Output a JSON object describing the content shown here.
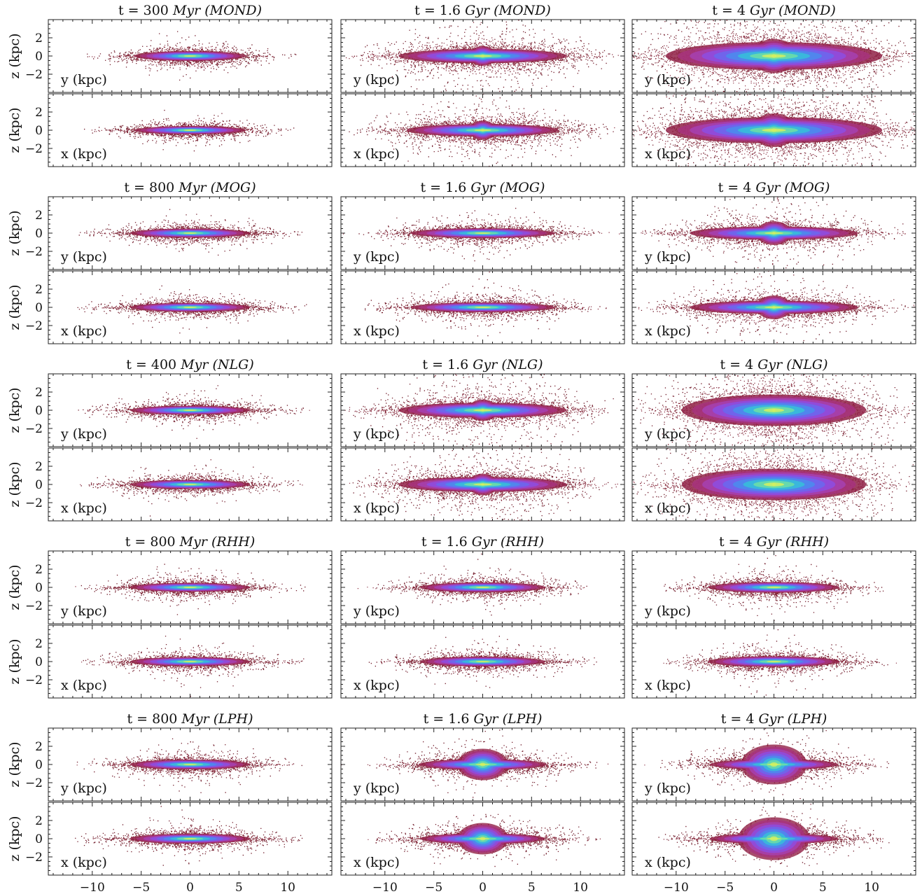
{
  "figure": {
    "x_tick_labels": [
      "−10",
      "−5",
      "0",
      "5",
      "10"
    ],
    "z_tick_labels": [
      "2",
      "0",
      "−2"
    ],
    "z_axis_label": "z  (kpc)",
    "colormap": [
      "#5a0f1e",
      "#8e1f3f",
      "#b23a9a",
      "#8a4fe8",
      "#4f7ff2",
      "#2fd4d0",
      "#d4f060"
    ]
  },
  "chart_data": [
    {
      "type": "scatter",
      "row": 0,
      "col": 0,
      "panel": "y",
      "title": "t = 300 Myr (MOND)",
      "title_time": "t = 300",
      "title_unit": "Myr",
      "title_model": "(MOND)",
      "inset_label": "y  (kpc)",
      "xlim": [
        -14.5,
        14.5
      ],
      "ylim": [
        -4,
        4
      ],
      "disk_half_length": 7.0,
      "disk_half_thickness": 0.55,
      "bulge": 0.3,
      "scatter": 0.35,
      "halo_extent": 11
    },
    {
      "type": "scatter",
      "row": 0,
      "col": 0,
      "panel": "x",
      "title": "t = 300 Myr (MOND)",
      "inset_label": "x  (kpc)",
      "xlim": [
        -14.5,
        14.5
      ],
      "ylim": [
        -4,
        4
      ],
      "disk_half_length": 7.0,
      "disk_half_thickness": 0.45,
      "bulge": 0.3,
      "scatter": 0.35,
      "halo_extent": 11
    },
    {
      "type": "scatter",
      "row": 0,
      "col": 1,
      "panel": "y",
      "title": "t = 1.6 Gyr (MOND)",
      "title_time": "t = 1.6",
      "title_unit": "Gyr",
      "title_model": "(MOND)",
      "inset_label": "y  (kpc)",
      "xlim": [
        -14.5,
        14.5
      ],
      "ylim": [
        -4,
        4
      ],
      "disk_half_length": 10.5,
      "disk_half_thickness": 0.8,
      "bulge": 0.55,
      "scatter": 0.9,
      "halo_extent": 14
    },
    {
      "type": "scatter",
      "row": 0,
      "col": 1,
      "panel": "x",
      "title": "t = 1.6 Gyr (MOND)",
      "inset_label": "x  (kpc)",
      "xlim": [
        -14.5,
        14.5
      ],
      "ylim": [
        -4,
        4
      ],
      "disk_half_length": 9.5,
      "disk_half_thickness": 0.7,
      "bulge": 0.55,
      "scatter": 0.9,
      "halo_extent": 14
    },
    {
      "type": "scatter",
      "row": 0,
      "col": 2,
      "panel": "y",
      "title": "t = 4 Gyr (MOND)",
      "title_time": "t = 4",
      "title_unit": "Gyr",
      "title_model": "(MOND)",
      "inset_label": "y  (kpc)",
      "xlim": [
        -14.5,
        14.5
      ],
      "ylim": [
        -4,
        4
      ],
      "disk_half_length": 13.5,
      "disk_half_thickness": 1.6,
      "bulge": 0.9,
      "scatter": 1.6,
      "halo_extent": 15
    },
    {
      "type": "scatter",
      "row": 0,
      "col": 2,
      "panel": "x",
      "title": "t = 4 Gyr (MOND)",
      "inset_label": "x  (kpc)",
      "xlim": [
        -14.5,
        14.5
      ],
      "ylim": [
        -4,
        4
      ],
      "disk_half_length": 13.5,
      "disk_half_thickness": 1.5,
      "bulge": 0.9,
      "scatter": 1.6,
      "halo_extent": 15
    },
    {
      "type": "scatter",
      "row": 1,
      "col": 0,
      "panel": "y",
      "title": "t = 800 Myr (MOG)",
      "title_time": "t = 800",
      "title_unit": "Myr",
      "title_model": "(MOG)",
      "inset_label": "y  (kpc)",
      "xlim": [
        -14.5,
        14.5
      ],
      "ylim": [
        -4,
        4
      ],
      "disk_half_length": 7.5,
      "disk_half_thickness": 0.5,
      "bulge": 0.3,
      "scatter": 0.4,
      "halo_extent": 12
    },
    {
      "type": "scatter",
      "row": 1,
      "col": 0,
      "panel": "x",
      "title": "t = 800 Myr (MOG)",
      "inset_label": "x  (kpc)",
      "xlim": [
        -14.5,
        14.5
      ],
      "ylim": [
        -4,
        4
      ],
      "disk_half_length": 7.5,
      "disk_half_thickness": 0.5,
      "bulge": 0.3,
      "scatter": 0.4,
      "halo_extent": 12
    },
    {
      "type": "scatter",
      "row": 1,
      "col": 1,
      "panel": "y",
      "title": "t = 1.6 Gyr (MOG)",
      "title_time": "t = 1.6",
      "title_unit": "Gyr",
      "title_model": "(MOG)",
      "inset_label": "y  (kpc)",
      "xlim": [
        -14.5,
        14.5
      ],
      "ylim": [
        -4,
        4
      ],
      "disk_half_length": 9.0,
      "disk_half_thickness": 0.55,
      "bulge": 0.35,
      "scatter": 0.55,
      "halo_extent": 13
    },
    {
      "type": "scatter",
      "row": 1,
      "col": 1,
      "panel": "x",
      "title": "t = 1.6 Gyr (MOG)",
      "inset_label": "x  (kpc)",
      "xlim": [
        -14.5,
        14.5
      ],
      "ylim": [
        -4,
        4
      ],
      "disk_half_length": 9.0,
      "disk_half_thickness": 0.55,
      "bulge": 0.35,
      "scatter": 0.55,
      "halo_extent": 13
    },
    {
      "type": "scatter",
      "row": 1,
      "col": 2,
      "panel": "y",
      "title": "t = 4 Gyr (MOG)",
      "title_time": "t = 4",
      "title_unit": "Gyr",
      "title_model": "(MOG)",
      "inset_label": "y  (kpc)",
      "xlim": [
        -14.5,
        14.5
      ],
      "ylim": [
        -4,
        4
      ],
      "disk_half_length": 10.5,
      "disk_half_thickness": 0.75,
      "bulge": 0.7,
      "scatter": 0.7,
      "halo_extent": 14
    },
    {
      "type": "scatter",
      "row": 1,
      "col": 2,
      "panel": "x",
      "title": "t = 4 Gyr (MOG)",
      "inset_label": "x  (kpc)",
      "xlim": [
        -14.5,
        14.5
      ],
      "ylim": [
        -4,
        4
      ],
      "disk_half_length": 10.5,
      "disk_half_thickness": 0.75,
      "bulge": 0.7,
      "scatter": 0.7,
      "halo_extent": 14
    },
    {
      "type": "scatter",
      "row": 2,
      "col": 0,
      "panel": "y",
      "title": "t = 400 Myr (NLG)",
      "title_time": "t = 400",
      "title_unit": "Myr",
      "title_model": "(NLG)",
      "inset_label": "y  (kpc)",
      "xlim": [
        -14.5,
        14.5
      ],
      "ylim": [
        -4,
        4
      ],
      "disk_half_length": 7.5,
      "disk_half_thickness": 0.5,
      "bulge": 0.3,
      "scatter": 0.4,
      "halo_extent": 12
    },
    {
      "type": "scatter",
      "row": 2,
      "col": 0,
      "panel": "x",
      "title": "t = 400 Myr (NLG)",
      "inset_label": "x  (kpc)",
      "xlim": [
        -14.5,
        14.5
      ],
      "ylim": [
        -4,
        4
      ],
      "disk_half_length": 7.5,
      "disk_half_thickness": 0.5,
      "bulge": 0.3,
      "scatter": 0.4,
      "halo_extent": 12
    },
    {
      "type": "scatter",
      "row": 2,
      "col": 1,
      "panel": "y",
      "title": "t = 1.6 Gyr (NLG)",
      "title_time": "t = 1.6",
      "title_unit": "Gyr",
      "title_model": "(NLG)",
      "inset_label": "y  (kpc)",
      "xlim": [
        -14.5,
        14.5
      ],
      "ylim": [
        -4,
        4
      ],
      "disk_half_length": 10.5,
      "disk_half_thickness": 0.85,
      "bulge": 0.6,
      "scatter": 0.95,
      "halo_extent": 14
    },
    {
      "type": "scatter",
      "row": 2,
      "col": 1,
      "panel": "x",
      "title": "t = 1.6 Gyr (NLG)",
      "inset_label": "x  (kpc)",
      "xlim": [
        -14.5,
        14.5
      ],
      "ylim": [
        -4,
        4
      ],
      "disk_half_length": 10.5,
      "disk_half_thickness": 0.85,
      "bulge": 0.6,
      "scatter": 0.95,
      "halo_extent": 14
    },
    {
      "type": "scatter",
      "row": 2,
      "col": 2,
      "panel": "y",
      "title": "t = 4 Gyr (NLG)",
      "title_time": "t = 4",
      "title_unit": "Gyr",
      "title_model": "(NLG)",
      "inset_label": "y  (kpc)",
      "xlim": [
        -14.5,
        14.5
      ],
      "ylim": [
        -4,
        4
      ],
      "disk_half_length": 11.5,
      "disk_half_thickness": 1.8,
      "bulge": 0.6,
      "scatter": 1.2,
      "halo_extent": 15
    },
    {
      "type": "scatter",
      "row": 2,
      "col": 2,
      "panel": "x",
      "title": "t = 4 Gyr (NLG)",
      "inset_label": "x  (kpc)",
      "xlim": [
        -14.5,
        14.5
      ],
      "ylim": [
        -4,
        4
      ],
      "disk_half_length": 11.5,
      "disk_half_thickness": 1.8,
      "bulge": 0.6,
      "scatter": 1.2,
      "halo_extent": 15
    },
    {
      "type": "scatter",
      "row": 3,
      "col": 0,
      "panel": "y",
      "title": "t = 800 Myr (RHH)",
      "title_time": "t = 800",
      "title_unit": "Myr",
      "title_model": "(RHH)",
      "inset_label": "y  (kpc)",
      "xlim": [
        -14.5,
        14.5
      ],
      "ylim": [
        -4,
        4
      ],
      "disk_half_length": 7.5,
      "disk_half_thickness": 0.5,
      "bulge": 0.3,
      "scatter": 0.4,
      "halo_extent": 12
    },
    {
      "type": "scatter",
      "row": 3,
      "col": 0,
      "panel": "x",
      "title": "t = 800 Myr (RHH)",
      "inset_label": "x  (kpc)",
      "xlim": [
        -14.5,
        14.5
      ],
      "ylim": [
        -4,
        4
      ],
      "disk_half_length": 7.5,
      "disk_half_thickness": 0.5,
      "bulge": 0.3,
      "scatter": 0.4,
      "halo_extent": 12
    },
    {
      "type": "scatter",
      "row": 3,
      "col": 1,
      "panel": "y",
      "title": "t = 1.6 Gyr (RHH)",
      "title_time": "t = 1.6",
      "title_unit": "Gyr",
      "title_model": "(RHH)",
      "inset_label": "y  (kpc)",
      "xlim": [
        -14.5,
        14.5
      ],
      "ylim": [
        -4,
        4
      ],
      "disk_half_length": 7.8,
      "disk_half_thickness": 0.55,
      "bulge": 0.35,
      "scatter": 0.45,
      "halo_extent": 12
    },
    {
      "type": "scatter",
      "row": 3,
      "col": 1,
      "panel": "x",
      "title": "t = 1.6 Gyr (RHH)",
      "inset_label": "x  (kpc)",
      "xlim": [
        -14.5,
        14.5
      ],
      "ylim": [
        -4,
        4
      ],
      "disk_half_length": 7.8,
      "disk_half_thickness": 0.55,
      "bulge": 0.35,
      "scatter": 0.45,
      "halo_extent": 12
    },
    {
      "type": "scatter",
      "row": 3,
      "col": 2,
      "panel": "y",
      "title": "t = 4 Gyr (RHH)",
      "title_time": "t = 4",
      "title_unit": "Gyr",
      "title_model": "(RHH)",
      "inset_label": "y  (kpc)",
      "xlim": [
        -14.5,
        14.5
      ],
      "ylim": [
        -4,
        4
      ],
      "disk_half_length": 8.2,
      "disk_half_thickness": 0.6,
      "bulge": 0.4,
      "scatter": 0.5,
      "halo_extent": 12
    },
    {
      "type": "scatter",
      "row": 3,
      "col": 2,
      "panel": "x",
      "title": "t = 4 Gyr (RHH)",
      "inset_label": "x  (kpc)",
      "xlim": [
        -14.5,
        14.5
      ],
      "ylim": [
        -4,
        4
      ],
      "disk_half_length": 8.2,
      "disk_half_thickness": 0.6,
      "bulge": 0.4,
      "scatter": 0.5,
      "halo_extent": 12
    },
    {
      "type": "scatter",
      "row": 4,
      "col": 0,
      "panel": "y",
      "title": "t = 800 Myr (LPH)",
      "title_time": "t = 800",
      "title_unit": "Myr",
      "title_model": "(LPH)",
      "inset_label": "y  (kpc)",
      "xlim": [
        -14.5,
        14.5
      ],
      "ylim": [
        -4,
        4
      ],
      "disk_half_length": 7.5,
      "disk_half_thickness": 0.55,
      "bulge": 0.3,
      "scatter": 0.45,
      "halo_extent": 12
    },
    {
      "type": "scatter",
      "row": 4,
      "col": 0,
      "panel": "x",
      "title": "t = 800 Myr (LPH)",
      "inset_label": "x  (kpc)",
      "xlim": [
        -14.5,
        14.5
      ],
      "ylim": [
        -4,
        4
      ],
      "disk_half_length": 7.5,
      "disk_half_thickness": 0.55,
      "bulge": 0.3,
      "scatter": 0.45,
      "halo_extent": 12
    },
    {
      "type": "scatter",
      "row": 4,
      "col": 1,
      "panel": "y",
      "title": "t = 1.6 Gyr (LPH)",
      "title_time": "t = 1.6",
      "title_unit": "Gyr",
      "title_model": "(LPH)",
      "inset_label": "y  (kpc)",
      "xlim": [
        -14.5,
        14.5
      ],
      "ylim": [
        -4,
        4
      ],
      "disk_half_length": 8.0,
      "disk_half_thickness": 0.6,
      "bulge": 1.0,
      "scatter": 0.6,
      "halo_extent": 12
    },
    {
      "type": "scatter",
      "row": 4,
      "col": 1,
      "panel": "x",
      "title": "t = 1.6 Gyr (LPH)",
      "inset_label": "x  (kpc)",
      "xlim": [
        -14.5,
        14.5
      ],
      "ylim": [
        -4,
        4
      ],
      "disk_half_length": 7.8,
      "disk_half_thickness": 0.6,
      "bulge": 1.0,
      "scatter": 0.6,
      "halo_extent": 12
    },
    {
      "type": "scatter",
      "row": 4,
      "col": 2,
      "panel": "y",
      "title": "t = 4 Gyr (LPH)",
      "title_time": "t = 4",
      "title_unit": "Gyr",
      "title_model": "(LPH)",
      "inset_label": "y  (kpc)",
      "xlim": [
        -14.5,
        14.5
      ],
      "ylim": [
        -4,
        4
      ],
      "disk_half_length": 8.0,
      "disk_half_thickness": 0.6,
      "bulge": 1.3,
      "scatter": 0.7,
      "halo_extent": 12
    },
    {
      "type": "scatter",
      "row": 4,
      "col": 2,
      "panel": "x",
      "title": "t = 4 Gyr (LPH)",
      "inset_label": "x  (kpc)",
      "xlim": [
        -14.5,
        14.5
      ],
      "ylim": [
        -4,
        4
      ],
      "disk_half_length": 8.0,
      "disk_half_thickness": 0.6,
      "bulge": 1.4,
      "scatter": 0.7,
      "halo_extent": 12
    }
  ]
}
